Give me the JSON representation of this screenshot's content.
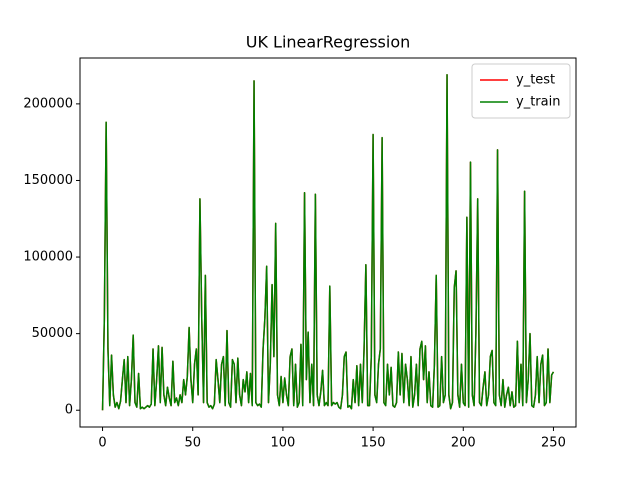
{
  "chart_data": {
    "type": "line",
    "title": "UK LinearRegression",
    "x": [
      0,
      1,
      2,
      3,
      4,
      5,
      6,
      7,
      8,
      9,
      10,
      11,
      12,
      13,
      14,
      15,
      16,
      17,
      18,
      19,
      20,
      21,
      22,
      23,
      24,
      25,
      26,
      27,
      28,
      29,
      30,
      31,
      32,
      33,
      34,
      35,
      36,
      37,
      38,
      39,
      40,
      41,
      42,
      43,
      44,
      45,
      46,
      47,
      48,
      49,
      50,
      51,
      52,
      53,
      54,
      55,
      56,
      57,
      58,
      59,
      60,
      61,
      62,
      63,
      64,
      65,
      66,
      67,
      68,
      69,
      70,
      71,
      72,
      73,
      74,
      75,
      76,
      77,
      78,
      79,
      80,
      81,
      82,
      83,
      84,
      85,
      86,
      87,
      88,
      89,
      90,
      91,
      92,
      93,
      94,
      95,
      96,
      97,
      98,
      99,
      100,
      101,
      102,
      103,
      104,
      105,
      106,
      107,
      108,
      109,
      110,
      111,
      112,
      113,
      114,
      115,
      116,
      117,
      118,
      119,
      120,
      121,
      122,
      123,
      124,
      125,
      126,
      127,
      128,
      129,
      130,
      131,
      132,
      133,
      134,
      135,
      136,
      137,
      138,
      139,
      140,
      141,
      142,
      143,
      144,
      145,
      146,
      147,
      148,
      149,
      150,
      151,
      152,
      153,
      154,
      155,
      156,
      157,
      158,
      159,
      160,
      161,
      162,
      163,
      164,
      165,
      166,
      167,
      168,
      169,
      170,
      171,
      172,
      173,
      174,
      175,
      176,
      177,
      178,
      179,
      180,
      181,
      182,
      183,
      184,
      185,
      186,
      187,
      188,
      189,
      190,
      191,
      192,
      193,
      194,
      195,
      196,
      197,
      198,
      199,
      200,
      201,
      202,
      203,
      204,
      205,
      206,
      207,
      208,
      209,
      210,
      211,
      212,
      213,
      214,
      215,
      216,
      217,
      218,
      219,
      220,
      221,
      222,
      223,
      224,
      225,
      226,
      227,
      228,
      229,
      230,
      231,
      232,
      233,
      234,
      235,
      236,
      237,
      238,
      239,
      240,
      241,
      242,
      243,
      244,
      245,
      246,
      247,
      248,
      249,
      250
    ],
    "series": [
      {
        "name": "y_test",
        "color": "#ff0000",
        "values": [
          0,
          60000,
          188000,
          40000,
          3000,
          36000,
          10000,
          2000,
          5000,
          1000,
          6000,
          20000,
          33000,
          5000,
          35000,
          3000,
          20000,
          49000,
          5000,
          2000,
          24000,
          1000,
          2000,
          1000,
          2000,
          3000,
          2000,
          4000,
          40000,
          3000,
          20000,
          42000,
          5000,
          41000,
          10000,
          3000,
          15000,
          8000,
          3000,
          32000,
          5000,
          8000,
          3000,
          10000,
          5000,
          20000,
          10000,
          22000,
          54000,
          20000,
          5000,
          30000,
          40000,
          10000,
          138000,
          60000,
          5000,
          88000,
          5000,
          2000,
          3000,
          1000,
          4000,
          33000,
          20000,
          5000,
          30000,
          35000,
          3000,
          52000,
          5000,
          2000,
          33000,
          30000,
          5000,
          34000,
          10000,
          3000,
          20000,
          12000,
          25000,
          5000,
          24000,
          3000,
          215000,
          5000,
          3000,
          4000,
          2000,
          40000,
          60000,
          94000,
          5000,
          30000,
          82000,
          35000,
          122000,
          10000,
          3000,
          22000,
          5000,
          21000,
          10000,
          3000,
          35000,
          40000,
          3000,
          30000,
          2000,
          5000,
          43000,
          3000,
          142000,
          20000,
          51000,
          5000,
          30000,
          3000,
          141000,
          10000,
          3000,
          12000,
          26000,
          3000,
          5000,
          3000,
          81000,
          3000,
          5000,
          4000,
          5000,
          2000,
          1000,
          10000,
          35000,
          38000,
          2000,
          3000,
          1000,
          20000,
          5000,
          29000,
          3000,
          30000,
          5000,
          40000,
          95000,
          3000,
          3000,
          35000,
          180000,
          10000,
          5000,
          30000,
          40000,
          178000,
          5000,
          3000,
          30000,
          10000,
          28000,
          3000,
          2000,
          5000,
          38000,
          10000,
          37000,
          5000,
          30000,
          20000,
          3000,
          35000,
          2000,
          10000,
          30000,
          3000,
          40000,
          45000,
          20000,
          42000,
          5000,
          25000,
          3000,
          2000,
          30000,
          88000,
          2000,
          3000,
          35000,
          5000,
          10000,
          219000,
          10000,
          1000,
          5000,
          80000,
          91000,
          10000,
          2000,
          30000,
          5000,
          3000,
          126000,
          2000,
          162000,
          10000,
          3000,
          50000,
          138000,
          5000,
          3000,
          15000,
          25000,
          3000,
          10000,
          35000,
          39000,
          5000,
          3000,
          170000,
          10000,
          3000,
          20000,
          2000,
          10000,
          15000,
          3000,
          12000,
          2000,
          3000,
          45000,
          5000,
          30000,
          3000,
          143000,
          5000,
          20000,
          50000,
          3000,
          2000,
          10000,
          35000,
          5000,
          30000,
          36000,
          3000,
          5000,
          40000,
          5000,
          23000,
          25000
        ]
      },
      {
        "name": "y_train",
        "color": "#008000",
        "values": [
          0,
          60000,
          188000,
          40000,
          3000,
          36000,
          10000,
          2000,
          5000,
          1000,
          6000,
          20000,
          33000,
          5000,
          35000,
          3000,
          20000,
          49000,
          5000,
          2000,
          24000,
          1000,
          2000,
          1000,
          2000,
          3000,
          2000,
          4000,
          40000,
          3000,
          20000,
          42000,
          5000,
          41000,
          10000,
          3000,
          15000,
          8000,
          3000,
          32000,
          5000,
          8000,
          3000,
          10000,
          5000,
          20000,
          10000,
          22000,
          54000,
          20000,
          5000,
          30000,
          40000,
          10000,
          138000,
          60000,
          5000,
          88000,
          5000,
          2000,
          3000,
          1000,
          4000,
          33000,
          20000,
          5000,
          30000,
          35000,
          3000,
          52000,
          5000,
          2000,
          33000,
          30000,
          5000,
          34000,
          10000,
          3000,
          20000,
          12000,
          25000,
          5000,
          24000,
          3000,
          215000,
          5000,
          3000,
          4000,
          2000,
          40000,
          60000,
          94000,
          5000,
          30000,
          82000,
          35000,
          122000,
          10000,
          3000,
          22000,
          5000,
          21000,
          10000,
          3000,
          35000,
          40000,
          3000,
          30000,
          2000,
          5000,
          43000,
          3000,
          142000,
          20000,
          51000,
          5000,
          30000,
          3000,
          141000,
          10000,
          3000,
          12000,
          26000,
          3000,
          5000,
          3000,
          81000,
          3000,
          5000,
          4000,
          5000,
          2000,
          1000,
          10000,
          35000,
          38000,
          2000,
          3000,
          1000,
          20000,
          5000,
          29000,
          3000,
          30000,
          5000,
          40000,
          95000,
          3000,
          3000,
          35000,
          180000,
          10000,
          5000,
          30000,
          40000,
          178000,
          5000,
          3000,
          30000,
          10000,
          28000,
          3000,
          2000,
          5000,
          38000,
          10000,
          37000,
          5000,
          30000,
          20000,
          3000,
          35000,
          2000,
          10000,
          30000,
          3000,
          40000,
          45000,
          20000,
          42000,
          5000,
          25000,
          3000,
          2000,
          30000,
          88000,
          2000,
          3000,
          35000,
          5000,
          10000,
          219000,
          10000,
          1000,
          5000,
          80000,
          91000,
          10000,
          2000,
          30000,
          5000,
          3000,
          126000,
          2000,
          162000,
          10000,
          3000,
          50000,
          138000,
          5000,
          3000,
          15000,
          25000,
          3000,
          10000,
          35000,
          39000,
          5000,
          3000,
          170000,
          10000,
          3000,
          20000,
          2000,
          10000,
          15000,
          3000,
          12000,
          2000,
          3000,
          45000,
          5000,
          30000,
          3000,
          143000,
          5000,
          20000,
          50000,
          3000,
          2000,
          10000,
          35000,
          5000,
          30000,
          36000,
          3000,
          5000,
          40000,
          5000,
          23000,
          25000
        ]
      }
    ],
    "xlim": [
      -12.5,
      262.5
    ],
    "xticks": [
      0,
      50,
      100,
      150,
      200,
      250
    ],
    "ylim": [
      -10950,
      229950
    ],
    "yticks": [
      0,
      50000,
      100000,
      150000,
      200000
    ],
    "legend": "upper right"
  }
}
